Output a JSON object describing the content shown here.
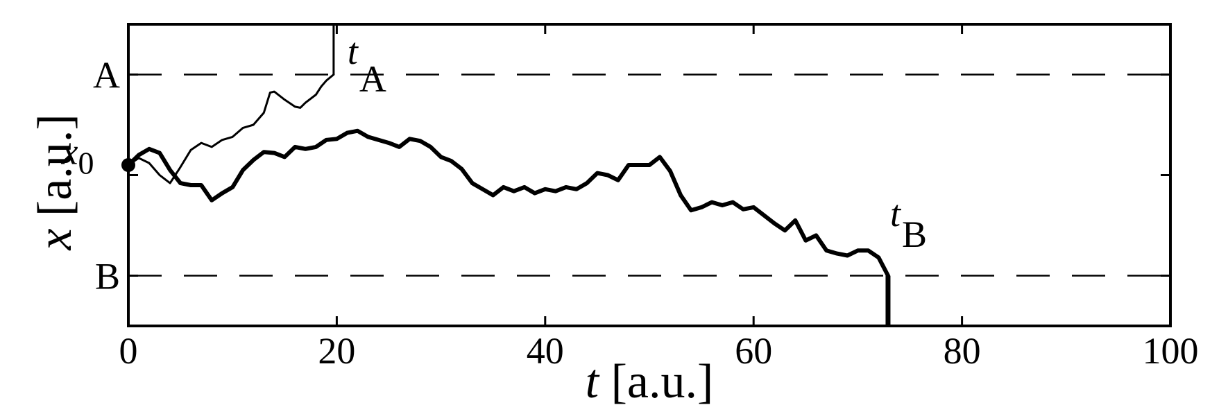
{
  "chart_data": {
    "type": "line",
    "title": "",
    "xlabel": "t [a.u.]",
    "ylabel": "x [a.u.]",
    "xlim": [
      0,
      100
    ],
    "ylim": [
      -1.5,
      1.5
    ],
    "xticks": [
      0,
      20,
      40,
      60,
      80,
      100
    ],
    "xtick_labels": [
      "0",
      "20",
      "40",
      "60",
      "80",
      "100"
    ],
    "yticks": [
      -1,
      0,
      1
    ],
    "grid": false,
    "legend": "none",
    "levels": [
      {
        "label": "A",
        "y": 1.0,
        "style": "dashed"
      },
      {
        "label": "B",
        "y": -1.0,
        "style": "dashed"
      }
    ],
    "start_point": {
      "label": "x0",
      "label_main": "x",
      "label_sub": "0",
      "x": 0,
      "y": 0.1
    },
    "series": [
      {
        "style": "thin",
        "x": [
          0,
          1,
          2,
          3,
          4,
          5,
          6,
          7,
          8,
          9,
          10,
          11,
          12,
          13,
          13.6,
          14,
          15,
          16,
          16.5,
          17,
          18,
          18.5,
          19,
          19.7
        ],
        "y": [
          0.1,
          0.17,
          0.12,
          0.0,
          -0.08,
          0.08,
          0.25,
          0.32,
          0.28,
          0.35,
          0.38,
          0.47,
          0.5,
          0.62,
          0.82,
          0.83,
          0.75,
          0.68,
          0.67,
          0.72,
          0.8,
          0.88,
          0.94,
          1.0
        ]
      },
      {
        "style": "thick",
        "x": [
          0,
          1,
          2,
          3,
          4,
          5,
          6,
          7,
          8,
          9,
          10,
          11,
          12,
          13,
          14,
          15,
          16,
          17,
          18,
          19,
          20,
          21,
          22,
          23,
          24,
          25,
          26,
          27,
          28,
          29,
          30,
          31,
          32,
          33,
          34,
          35,
          36,
          37,
          38,
          39,
          40,
          41,
          42,
          43,
          44,
          45,
          46,
          47,
          48,
          49,
          50,
          51,
          52,
          53,
          54,
          55,
          56,
          57,
          58,
          59,
          60,
          61,
          62,
          63,
          64,
          65,
          66,
          67,
          68,
          69,
          70,
          71,
          72,
          72.9
        ],
        "y": [
          0.1,
          0.2,
          0.26,
          0.22,
          0.05,
          -0.08,
          -0.1,
          -0.1,
          -0.25,
          -0.18,
          -0.12,
          0.05,
          0.15,
          0.23,
          0.22,
          0.18,
          0.28,
          0.26,
          0.28,
          0.35,
          0.36,
          0.42,
          0.44,
          0.38,
          0.35,
          0.32,
          0.28,
          0.36,
          0.34,
          0.28,
          0.18,
          0.14,
          0.06,
          -0.08,
          -0.14,
          -0.2,
          -0.12,
          -0.16,
          -0.12,
          -0.18,
          -0.14,
          -0.16,
          -0.12,
          -0.14,
          -0.08,
          0.02,
          0.0,
          -0.05,
          0.1,
          0.1,
          0.1,
          0.18,
          0.04,
          -0.2,
          -0.35,
          -0.32,
          -0.27,
          -0.3,
          -0.27,
          -0.34,
          -0.32,
          -0.4,
          -0.48,
          -0.55,
          -0.45,
          -0.65,
          -0.6,
          -0.75,
          -0.78,
          -0.8,
          -0.75,
          -0.75,
          -0.82,
          -1.0
        ]
      }
    ],
    "exits": [
      {
        "label": "tA",
        "label_main": "t",
        "label_sub": "A",
        "x": 19.7,
        "from_y": 1.0,
        "to_y": 1.5,
        "style": "thin"
      },
      {
        "label": "tB",
        "label_main": "t",
        "label_sub": "B",
        "x": 72.9,
        "from_y": -1.0,
        "to_y": -1.5,
        "style": "thick"
      }
    ]
  }
}
